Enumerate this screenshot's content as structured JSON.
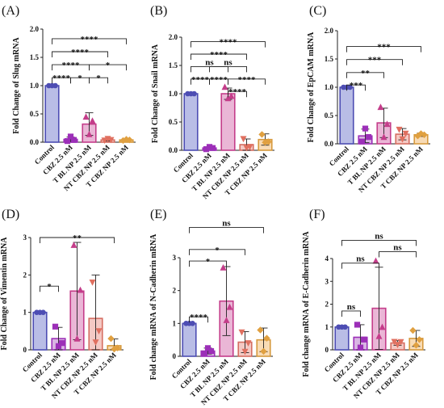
{
  "colors": {
    "Control": {
      "fill": "#b9bde6",
      "stroke": "#4d4db3",
      "point": "#4d4db3"
    },
    "CBZ 2.5 nM": {
      "fill": "#d9b5e3",
      "stroke": "#9c2fb8",
      "point": "#9c2fb8"
    },
    "T BL NP 2.5 nM": {
      "fill": "#eab6d6",
      "stroke": "#c43d8a",
      "point": "#c43d8a"
    },
    "NT CBZ NP 2.5 nM": {
      "fill": "#f4c9c4",
      "stroke": "#d56e62",
      "point": "#e07060"
    },
    "T CBZ NP 2.5 nM": {
      "fill": "#f8dbb5",
      "stroke": "#d69a3e",
      "point": "#e0a040"
    }
  },
  "chart_data": [
    {
      "type": "bar",
      "panel": "(A)",
      "ylabel": "Fold Change of Slug mRNA",
      "categories": [
        "Control",
        "CBZ 2.5 nM",
        "T BL NP 2.5 nM",
        "NT CBZ NP 2.5 nM",
        "T CBZ NP 2.5 nM"
      ],
      "values": [
        1.0,
        0.05,
        0.32,
        0.04,
        0.04
      ],
      "errors": [
        0.01,
        0.04,
        0.2,
        0.02,
        0.02
      ],
      "points": [
        [
          1.0,
          1.0,
          1.0
        ],
        [
          0.02,
          0.1,
          0.04
        ],
        [
          0.45,
          0.14,
          0.38
        ],
        [
          0.03,
          0.06,
          0.04
        ],
        [
          0.03,
          0.05,
          0.04
        ]
      ],
      "yticks": [
        0.0,
        0.5,
        1.0,
        1.5,
        2.0
      ],
      "ytick_labels": [
        "0.0",
        "0.5",
        "1.0",
        "1.5",
        "2.0"
      ],
      "ylim": [
        0,
        2.0
      ],
      "significance": [
        {
          "from": 0,
          "to": 4,
          "label": "****",
          "y": 1.83
        },
        {
          "from": 0,
          "to": 3,
          "label": "****",
          "y": 1.6
        },
        {
          "from": 0,
          "to": 2,
          "label": "****",
          "y": 1.37
        },
        {
          "from": 2,
          "to": 4,
          "label": "*",
          "y": 1.37
        },
        {
          "from": 0,
          "to": 1,
          "label": "****",
          "y": 1.14
        },
        {
          "from": 1,
          "to": 2,
          "label": "*",
          "y": 1.14
        },
        {
          "from": 2,
          "to": 3,
          "label": "*",
          "y": 1.14
        }
      ]
    },
    {
      "type": "bar",
      "panel": "(B)",
      "ylabel": "Fold Change of Snail mRNA",
      "categories": [
        "Control",
        "CBZ 2.5 nM",
        "T BL NP 2.5 nM",
        "NT CBZ NP 2.5 nM",
        "T CBZ NP 2.5 nM"
      ],
      "values": [
        1.0,
        0.04,
        1.0,
        0.1,
        0.19
      ],
      "errors": [
        0.01,
        0.02,
        0.1,
        0.1,
        0.1
      ],
      "points": [
        [
          1.0,
          1.0,
          1.0
        ],
        [
          0.02,
          0.06,
          0.04
        ],
        [
          1.12,
          0.92,
          0.96
        ],
        [
          0.2,
          0.04,
          0.06
        ],
        [
          0.28,
          0.14,
          0.15
        ]
      ],
      "yticks": [
        0.0,
        0.5,
        1.0,
        1.5,
        2.0
      ],
      "ytick_labels": [
        "0.0",
        "0.5",
        "1.0",
        "1.5",
        "2.0"
      ],
      "ylim": [
        0,
        2.0
      ],
      "significance": [
        {
          "from": 0,
          "to": 4,
          "label": "****",
          "y": 1.92
        },
        {
          "from": 0,
          "to": 3,
          "label": "****",
          "y": 1.7
        },
        {
          "from": 0,
          "to": 2,
          "label": "ns",
          "y": 1.48
        },
        {
          "from": 1,
          "to": 3,
          "label": "ns",
          "y": 1.48
        },
        {
          "from": 0,
          "to": 1,
          "label": "****",
          "y": 1.26
        },
        {
          "from": 1,
          "to": 2,
          "label": "****",
          "y": 1.26
        },
        {
          "from": 2,
          "to": 4,
          "label": "****",
          "y": 1.26
        },
        {
          "from": 2,
          "to": 3,
          "label": "****",
          "y": 1.04
        }
      ]
    },
    {
      "type": "bar",
      "panel": "(C)",
      "ylabel": "Fold Change of EpCAM mRNA",
      "categories": [
        "Control",
        "CBZ 2.5 nM",
        "T BL NP 2.5 nM",
        "NT CBZ NP 2.5 nM",
        "T CBZ NP 2.5 nM"
      ],
      "values": [
        1.0,
        0.14,
        0.37,
        0.17,
        0.16
      ],
      "errors": [
        0.01,
        0.12,
        0.26,
        0.1,
        0.03
      ],
      "points": [
        [
          1.0,
          1.0,
          1.0
        ],
        [
          0.04,
          0.27,
          0.12
        ],
        [
          0.65,
          0.12,
          0.35
        ],
        [
          0.25,
          0.08,
          0.18
        ],
        [
          0.14,
          0.18,
          0.16
        ]
      ],
      "yticks": [
        0.0,
        0.5,
        1.0,
        1.5,
        2.0
      ],
      "ytick_labels": [
        "0.0",
        "0.5",
        "1.0",
        "1.5",
        "2.0"
      ],
      "ylim": [
        0,
        2.0
      ],
      "significance": [
        {
          "from": 0,
          "to": 4,
          "label": "***",
          "y": 1.72
        },
        {
          "from": 0,
          "to": 3,
          "label": "***",
          "y": 1.49
        },
        {
          "from": 0,
          "to": 2,
          "label": "**",
          "y": 1.26
        },
        {
          "from": 0,
          "to": 1,
          "label": "***",
          "y": 1.04
        }
      ]
    },
    {
      "type": "bar",
      "panel": "(D)",
      "ylabel": "Fold Change of Vimentin mRNA",
      "categories": [
        "Control",
        "CBZ 2.5 nM",
        "T BL NP 2.5 nM",
        "NT CBZ NP 2.5 nM",
        "T CBZ NP 2.5 nM"
      ],
      "values": [
        1.0,
        0.3,
        1.57,
        0.84,
        0.11
      ],
      "errors": [
        0.01,
        0.3,
        1.3,
        1.16,
        0.18
      ],
      "points": [
        [
          1.0,
          1.0,
          1.0
        ],
        [
          0.62,
          0.1,
          0.18
        ],
        [
          2.8,
          0.3,
          1.6
        ],
        [
          1.8,
          0.2,
          0.5
        ],
        [
          0.3,
          0.02,
          0.05
        ]
      ],
      "yticks": [
        0,
        1,
        2,
        3
      ],
      "ytick_labels": [
        "0",
        "1",
        "2",
        "3"
      ],
      "ylim": [
        0,
        3.0
      ],
      "significance": [
        {
          "from": 0,
          "to": 4,
          "label": "**",
          "y": 3.0
        },
        {
          "from": 0,
          "to": 1,
          "label": "*",
          "y": 1.7
        }
      ]
    },
    {
      "type": "bar",
      "panel": "(E)",
      "ylabel": "Fold change mRNA of N-Cadherin mRNA",
      "categories": [
        "Control",
        "CBZ 2.5 nM",
        "T BL NP 2.5 nM",
        "NT CBZ NP 2.5 nM",
        "T CBZ NP 2.5 nM"
      ],
      "values": [
        1.0,
        0.16,
        1.68,
        0.43,
        0.5
      ],
      "errors": [
        0.01,
        0.09,
        1.05,
        0.32,
        0.36
      ],
      "points": [
        [
          1.0,
          1.0,
          1.0
        ],
        [
          0.08,
          0.25,
          0.16
        ],
        [
          2.7,
          1.1,
          1.5
        ],
        [
          0.73,
          0.14,
          0.4
        ],
        [
          0.8,
          0.15,
          0.55
        ]
      ],
      "yticks": [
        0,
        1,
        2,
        3
      ],
      "ytick_labels": [
        "0",
        "1",
        "2",
        "3"
      ],
      "ylim": [
        0,
        3.0
      ],
      "significance": [
        {
          "from": 0,
          "to": 4,
          "label": "ns",
          "y": 3.92
        },
        {
          "from": 0,
          "to": 3,
          "label": "*",
          "y": 3.25
        },
        {
          "from": 0,
          "to": 2,
          "label": "*",
          "y": 2.9
        },
        {
          "from": 0,
          "to": 1,
          "label": "****",
          "y": 1.2
        }
      ]
    },
    {
      "type": "bar",
      "panel": "(F)",
      "ylabel": "Fold change mRNA of E-Cadherin mRNA",
      "categories": [
        "Control",
        "CBZ 2.5 nM",
        "T BL NP 2.5 nM",
        "NT CBZ NP 2.5 nM",
        "T CBZ NP 2.5 nM"
      ],
      "values": [
        1.0,
        0.55,
        1.82,
        0.3,
        0.5
      ],
      "errors": [
        0.01,
        0.55,
        1.8,
        0.1,
        0.35
      ],
      "points": [
        [
          1.0,
          1.0,
          1.0
        ],
        [
          1.1,
          0.1,
          0.45
        ],
        [
          3.9,
          0.6,
          1.0
        ],
        [
          0.35,
          0.22,
          0.34
        ],
        [
          0.85,
          0.2,
          0.45
        ]
      ],
      "yticks": [
        0,
        1,
        2,
        3,
        4
      ],
      "ytick_labels": [
        "0",
        "1",
        "2",
        "3",
        "4"
      ],
      "ylim": [
        0,
        4.0
      ],
      "significance": [
        {
          "from": 0,
          "to": 4,
          "label": "ns",
          "y": 4.8
        },
        {
          "from": 2,
          "to": 4,
          "label": "ns",
          "y": 4.3
        },
        {
          "from": 0,
          "to": 2,
          "label": "ns",
          "y": 3.8
        },
        {
          "from": 0,
          "to": 1,
          "label": "ns",
          "y": 1.7
        }
      ]
    }
  ]
}
